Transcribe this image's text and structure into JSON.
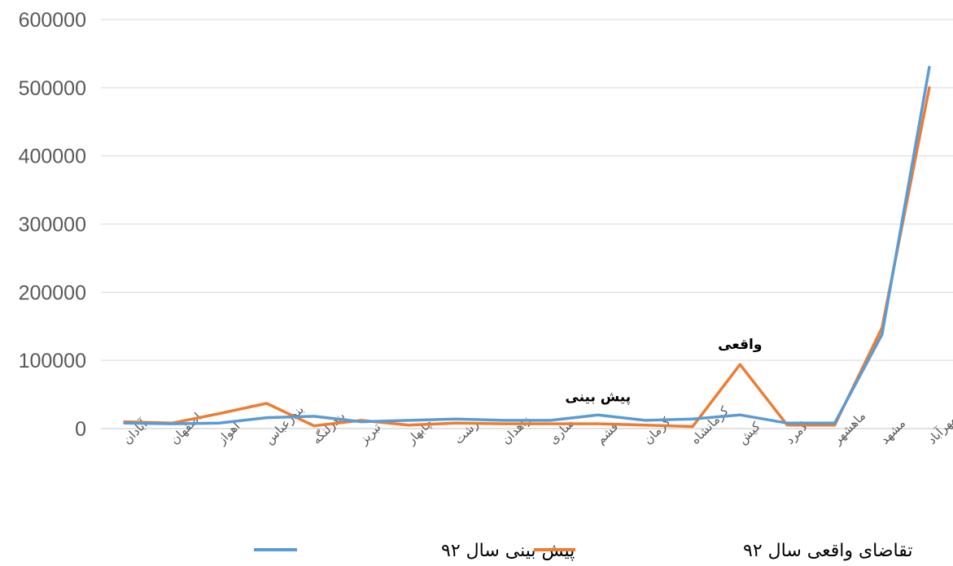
{
  "chart_data": {
    "type": "line",
    "categories": [
      "آبادان",
      "اصفهان",
      "اهواز",
      "بندرعباس",
      "بندرلنگه",
      "تبریز",
      "چابهار",
      "رشت",
      "زاهدان",
      "ساری",
      "قشم",
      "کرمان",
      "کرمانشاه",
      "کیش",
      "لامرد",
      "ماهشهر",
      "مشهد",
      "مهرآباد"
    ],
    "series": [
      {
        "name": "پیش بینی سال ۹۲",
        "color": "#5B9BD5",
        "values": [
          8000,
          7000,
          8000,
          16000,
          18000,
          10000,
          12000,
          14000,
          12000,
          12000,
          20000,
          12000,
          14000,
          20000,
          8000,
          8000,
          138000,
          530000
        ]
      },
      {
        "name": "تقاضای واقعی سال ۹۲",
        "color": "#ED7D31",
        "values": [
          10000,
          8000,
          22000,
          37000,
          4000,
          12000,
          5000,
          8000,
          7000,
          7000,
          7000,
          5000,
          3000,
          94000,
          5000,
          5000,
          148000,
          500000
        ]
      }
    ],
    "ylim": [
      0,
      600000
    ],
    "yticks": [
      "0",
      "100000",
      "200000",
      "300000",
      "400000",
      "500000",
      "600000"
    ],
    "grid": true,
    "legend_position": "bottom",
    "annotations": [
      {
        "text": "پیش بینی",
        "category": "قشم",
        "value": 40000
      },
      {
        "text": "واقعی",
        "category": "کیش",
        "value": 117000
      }
    ]
  }
}
